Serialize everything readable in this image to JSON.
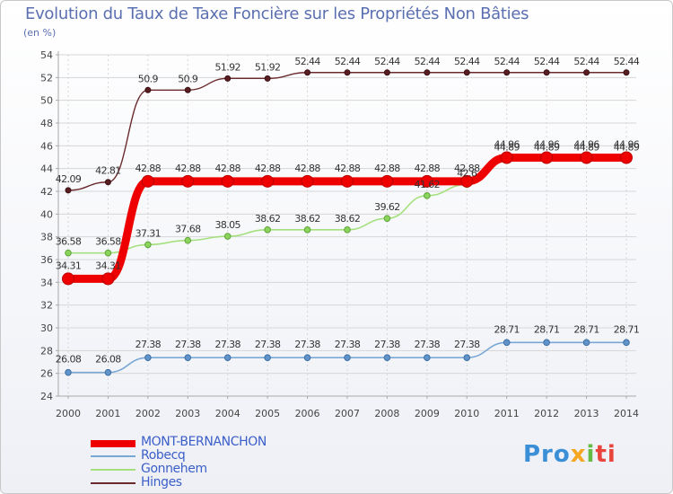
{
  "header": {
    "title": "Evolution du Taux de Taxe Foncière sur les Propriétés Non Bâties",
    "unit": "(en %)"
  },
  "logo": {
    "parts": [
      "Pro",
      "x",
      "i",
      "ti"
    ]
  },
  "chart_data": {
    "type": "line",
    "title": "Evolution du Taux de Taxe Foncière sur les Propriétés Non Bâties",
    "ylabel": "(en %)",
    "xlabel": "",
    "ylim": [
      24,
      54
    ],
    "yticks": [
      24,
      26,
      28,
      30,
      32,
      34,
      36,
      38,
      40,
      42,
      44,
      46,
      48,
      50,
      52,
      54
    ],
    "categories": [
      "2000",
      "2001",
      "2002",
      "2003",
      "2004",
      "2005",
      "2006",
      "2007",
      "2008",
      "2009",
      "2010",
      "2011",
      "2012",
      "2013",
      "2014"
    ],
    "series": [
      {
        "name": "Hinges",
        "color": "#6b2a2e",
        "values": [
          42.09,
          42.81,
          50.9,
          50.9,
          51.92,
          51.92,
          52.44,
          52.44,
          52.44,
          52.44,
          52.44,
          52.44,
          52.44,
          52.44,
          52.44
        ],
        "labels": [
          "42.09",
          "42.81",
          "50.9",
          "50.9",
          "51.92",
          "51.92",
          "52.44",
          "52.44",
          "52.44",
          "52.44",
          "52.44",
          "52.44",
          "52.44",
          "52.44",
          "52.44"
        ]
      },
      {
        "name": "Gonnehem",
        "color": "#a5e07e",
        "values": [
          36.58,
          36.58,
          37.31,
          37.68,
          38.05,
          38.62,
          38.62,
          38.62,
          39.62,
          41.62,
          42.6,
          44.89,
          44.89,
          44.89,
          44.89
        ],
        "labels": [
          "36.58",
          "36.58",
          "37.31",
          "37.68",
          "38.05",
          "38.62",
          "38.62",
          "38.62",
          "39.62",
          "41.62",
          "42.6",
          "44.89",
          "44.89",
          "44.89",
          "44.89"
        ]
      },
      {
        "name": "MONT-BERNANCHON",
        "color": "#ee0000",
        "values": [
          34.31,
          34.31,
          42.88,
          42.88,
          42.88,
          42.88,
          42.88,
          42.88,
          42.88,
          42.88,
          42.88,
          44.96,
          44.96,
          44.96,
          44.96
        ],
        "labels": [
          "34.31",
          "34.31",
          "42.88",
          "42.88",
          "42.88",
          "42.88",
          "42.88",
          "42.88",
          "42.88",
          "42.88",
          "42.88",
          "44.96",
          "44.96",
          "44.96",
          "44.96"
        ]
      },
      {
        "name": "Robecq",
        "color": "#7aa8d6",
        "values": [
          26.08,
          26.08,
          27.38,
          27.38,
          27.38,
          27.38,
          27.38,
          27.38,
          27.38,
          27.38,
          27.38,
          28.71,
          28.71,
          28.71,
          28.71
        ],
        "labels": [
          "26.08",
          "26.08",
          "27.38",
          "27.38",
          "27.38",
          "27.38",
          "27.38",
          "27.38",
          "27.38",
          "27.38",
          "27.38",
          "28.71",
          "28.71",
          "28.71",
          "28.71"
        ]
      }
    ],
    "legend": {
      "placement": "bottom-left",
      "entries": [
        "MONT-BERNANCHON",
        "Robecq",
        "Gonnehem",
        "Hinges"
      ],
      "colors": [
        "#ee0000",
        "#7aa8d6",
        "#a5e07e",
        "#6b2a2e"
      ]
    }
  }
}
